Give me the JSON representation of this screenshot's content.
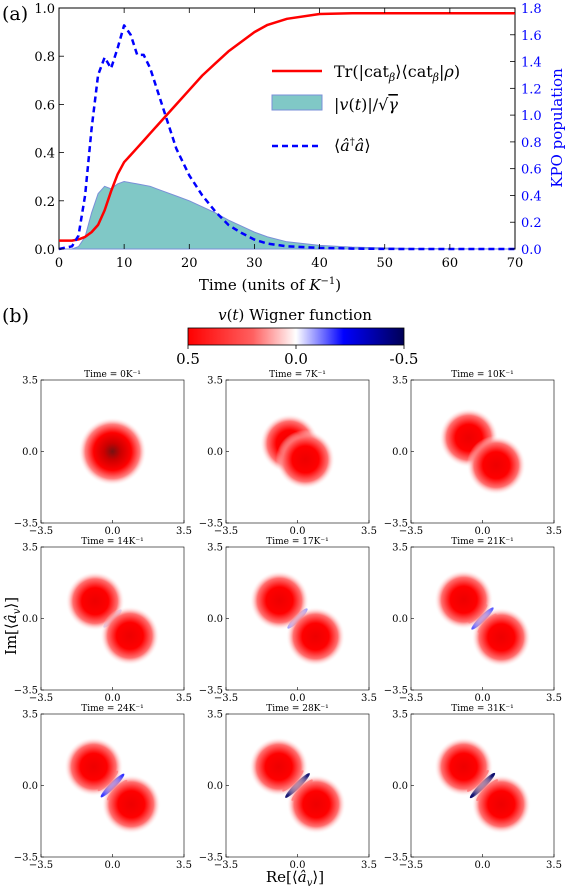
{
  "labels": {
    "panel_a": "(a)",
    "panel_b": "(b)"
  },
  "chart_data": [
    {
      "type": "line",
      "x": [
        0,
        2,
        3,
        4,
        5,
        6,
        7,
        8,
        9,
        10,
        11,
        12,
        13,
        14,
        15,
        16,
        18,
        20,
        22,
        24,
        26,
        28,
        30,
        32,
        35,
        40,
        45,
        50,
        55,
        60,
        65,
        70
      ],
      "xlim": [
        0,
        70
      ],
      "xticks": [
        0,
        10,
        20,
        30,
        40,
        50,
        60,
        70
      ],
      "xlabel": "Time (units of K⁻¹)",
      "ylim_left": [
        0,
        1.0
      ],
      "yticks_left": [
        "0.0",
        "0.2",
        "0.4",
        "0.6",
        "0.8",
        "1.0"
      ],
      "ylim_right": [
        0,
        1.8
      ],
      "yticks_right": [
        "0.0",
        "0.2",
        "0.4",
        "0.6",
        "0.8",
        "1.0",
        "1.2",
        "1.4",
        "1.6",
        "1.8"
      ],
      "ylabel_right": "KPO population",
      "legend_position": "upper-right",
      "series": [
        {
          "name": "Tr(|catᵦ⟩⟨catᵦ|ρ)",
          "axis": "left",
          "style": "solid",
          "color": "#ff0000",
          "values": [
            0.035,
            0.035,
            0.04,
            0.05,
            0.07,
            0.1,
            0.16,
            0.24,
            0.31,
            0.36,
            0.39,
            0.42,
            0.45,
            0.48,
            0.51,
            0.54,
            0.6,
            0.66,
            0.72,
            0.77,
            0.82,
            0.86,
            0.9,
            0.93,
            0.955,
            0.975,
            0.978,
            0.978,
            0.978,
            0.978,
            0.978,
            0.978
          ]
        },
        {
          "name": "|v(t)|/√γ",
          "axis": "left",
          "style": "area",
          "color": "#7ec4c4",
          "values": [
            0,
            0,
            0.01,
            0.05,
            0.15,
            0.23,
            0.26,
            0.25,
            0.27,
            0.28,
            0.275,
            0.27,
            0.265,
            0.26,
            0.25,
            0.24,
            0.22,
            0.2,
            0.175,
            0.15,
            0.12,
            0.095,
            0.07,
            0.05,
            0.03,
            0.015,
            0.008,
            0.004,
            0.002,
            0.001,
            0.0005,
            0.0002
          ]
        },
        {
          "name": "⟨â†â⟩",
          "axis": "right",
          "style": "dashed",
          "color": "#0000ff",
          "values": [
            0,
            0.02,
            0.1,
            0.4,
            0.9,
            1.3,
            1.43,
            1.35,
            1.5,
            1.67,
            1.6,
            1.45,
            1.45,
            1.35,
            1.2,
            1.05,
            0.75,
            0.55,
            0.4,
            0.28,
            0.18,
            0.12,
            0.07,
            0.04,
            0.02,
            0.008,
            0.003,
            0.001,
            0,
            0,
            0,
            0
          ]
        }
      ]
    },
    {
      "type": "heatmap",
      "colorbar": {
        "title": "v(t) Wigner function",
        "ticks": [
          "0.5",
          "0.0",
          "-0.5"
        ],
        "colors": [
          "#ff0000",
          "#ffffff",
          "#0000ff",
          "#000066"
        ]
      },
      "xlabel": "Re[⟨âᵥ⟩]",
      "ylabel": "Im[⟨âᵥ⟩]",
      "axis_range": [
        -3.5,
        3.5
      ],
      "ticks": [
        "−3.5",
        "0.0",
        "3.5"
      ],
      "ytick_labels": [
        "3.5",
        "0.0",
        "−3.5"
      ],
      "panels": [
        {
          "title": "Time = 0K⁻¹",
          "sep": 0.0,
          "fringes": 0.0
        },
        {
          "title": "Time = 7K⁻¹",
          "sep": 0.55,
          "fringes": 0.0
        },
        {
          "title": "Time = 10K⁻¹",
          "sep": 0.95,
          "fringes": 0.1
        },
        {
          "title": "Time = 14K⁻¹",
          "sep": 1.2,
          "fringes": 0.25
        },
        {
          "title": "Time = 17K⁻¹",
          "sep": 1.25,
          "fringes": 0.45
        },
        {
          "title": "Time = 21K⁻¹",
          "sep": 1.3,
          "fringes": 0.65
        },
        {
          "title": "Time = 24K⁻¹",
          "sep": 1.3,
          "fringes": 0.8
        },
        {
          "title": "Time = 28K⁻¹",
          "sep": 1.3,
          "fringes": 0.9
        },
        {
          "title": "Time = 31K⁻¹",
          "sep": 1.3,
          "fringes": 0.95
        }
      ]
    }
  ]
}
